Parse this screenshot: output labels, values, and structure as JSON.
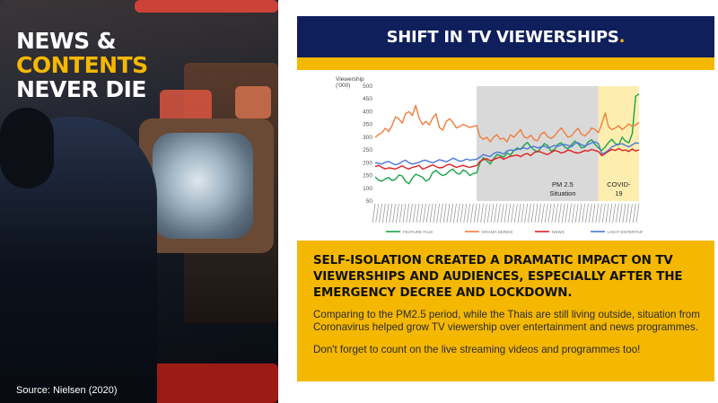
{
  "headline": {
    "line1": "NEWS &",
    "line2": "CONTENTS",
    "line3": "NEVER DIE"
  },
  "source": "Source: Nielsen (2020)",
  "title": {
    "text": "SHIFT IN TV VIEWERSHIPS",
    "dot": "."
  },
  "info": {
    "heading": "SELF-ISOLATION CREATED A DRAMATIC IMPACT ON TV VIEWERSHIPS AND AUDIENCES, ESPECIALLY AFTER THE EMERGENCY DECREE AND LOCKDOWN.",
    "body": "Comparing to the PM2.5 period, while the Thais are still living outside, situation from Coronavirus helped grow TV viewership over entertainment and news programmes.",
    "body2": "Don't forget to count on the live streaming videos and programmes too!"
  },
  "colors": {
    "navy": "#0f1f5c",
    "yellow": "#f5b800"
  },
  "chart_data": {
    "type": "line",
    "ylabel_line1": "Viewership",
    "ylabel_line2": "('000)",
    "ylim": [
      50,
      500
    ],
    "yticks": [
      50,
      100,
      150,
      200,
      250,
      300,
      350,
      400,
      450,
      500
    ],
    "grid": false,
    "legend_position": "bottom",
    "regions": [
      {
        "label_line1": "PM 2.5",
        "label_line2": "Situation",
        "from": 31,
        "to": 67,
        "color": "#d9d9d9"
      },
      {
        "label_line1": "COVID-",
        "label_line2": "19",
        "from": 67,
        "to": 79,
        "color": "#fdeeb0"
      }
    ],
    "x": [
      1,
      2,
      3,
      4,
      5,
      6,
      7,
      8,
      9,
      10,
      11,
      12,
      13,
      14,
      15,
      16,
      17,
      18,
      19,
      20,
      21,
      22,
      23,
      24,
      25,
      26,
      27,
      28,
      29,
      30,
      31,
      32,
      33,
      34,
      35,
      36,
      37,
      38,
      39,
      40,
      41,
      42,
      43,
      44,
      45,
      46,
      47,
      48,
      49,
      50,
      51,
      52,
      53,
      54,
      55,
      56,
      57,
      58,
      59,
      60,
      61,
      62,
      63,
      64,
      65,
      66,
      67,
      68,
      69,
      70,
      71,
      72,
      73,
      74,
      75,
      76,
      77,
      78,
      79
    ],
    "series": [
      {
        "name": "FEATURE FILM",
        "color": "#1aa34a",
        "values": [
          145,
          132,
          128,
          137,
          142,
          130,
          135,
          152,
          148,
          127,
          118,
          140,
          155,
          150,
          143,
          128,
          135,
          162,
          170,
          158,
          150,
          155,
          168,
          175,
          160,
          155,
          172,
          165,
          150,
          158,
          160,
          200,
          220,
          208,
          195,
          215,
          232,
          228,
          222,
          238,
          230,
          248,
          258,
          252,
          268,
          280,
          262,
          250,
          242,
          258,
          275,
          268,
          245,
          252,
          272,
          278,
          262,
          255,
          270,
          285,
          275,
          258,
          262,
          282,
          290,
          272,
          258,
          248,
          262,
          280,
          292,
          275,
          270,
          300,
          285,
          278,
          315,
          460,
          470
        ]
      },
      {
        "name": "DRAMA SERIES",
        "color": "#f07d3c",
        "values": [
          300,
          310,
          318,
          335,
          322,
          345,
          380,
          372,
          355,
          392,
          400,
          385,
          425,
          375,
          350,
          362,
          348,
          375,
          392,
          338,
          328,
          362,
          372,
          358,
          336,
          342,
          350,
          345,
          338,
          342,
          346,
          302,
          292,
          300,
          282,
          300,
          310,
          292,
          296,
          282,
          310,
          300,
          315,
          330,
          302,
          296,
          308,
          290,
          286,
          312,
          320,
          302,
          295,
          305,
          322,
          336,
          318,
          300,
          305,
          322,
          335,
          312,
          305,
          318,
          336,
          330,
          318,
          352,
          395,
          340,
          330,
          336,
          345,
          330,
          340,
          352,
          342,
          348,
          358
        ]
      },
      {
        "name": "NEWS",
        "color": "#e02020",
        "values": [
          185,
          190,
          182,
          176,
          180,
          178,
          175,
          182,
          188,
          180,
          176,
          182,
          185,
          190,
          175,
          180,
          186,
          192,
          185,
          180,
          182,
          190,
          194,
          188,
          182,
          186,
          190,
          185,
          182,
          186,
          188,
          205,
          212,
          216,
          208,
          212,
          218,
          222,
          214,
          220,
          225,
          228,
          230,
          224,
          232,
          236,
          228,
          240,
          245,
          242,
          236,
          232,
          240,
          248,
          245,
          238,
          242,
          250,
          246,
          240,
          238,
          242,
          248,
          246,
          252,
          248,
          244,
          228,
          236,
          245,
          252,
          248,
          256,
          248,
          250,
          244,
          254,
          246,
          250
        ]
      },
      {
        "name": "LIGHT ENTERTAIN",
        "color": "#4a78d9",
        "values": [
          200,
          198,
          195,
          202,
          205,
          198,
          192,
          196,
          205,
          210,
          200,
          195,
          198,
          202,
          208,
          210,
          204,
          200,
          205,
          212,
          208,
          204,
          210,
          218,
          212,
          206,
          208,
          215,
          210,
          212,
          214,
          222,
          232,
          228,
          224,
          236,
          242,
          240,
          234,
          246,
          250,
          248,
          252,
          255,
          258,
          254,
          262,
          264,
          258,
          262,
          266,
          258,
          262,
          268,
          264,
          270,
          272,
          268,
          262,
          275,
          278,
          270,
          266,
          272,
          278,
          282,
          275,
          235,
          240,
          250,
          262,
          268,
          272,
          275,
          268,
          262,
          270,
          278,
          276
        ]
      }
    ]
  }
}
